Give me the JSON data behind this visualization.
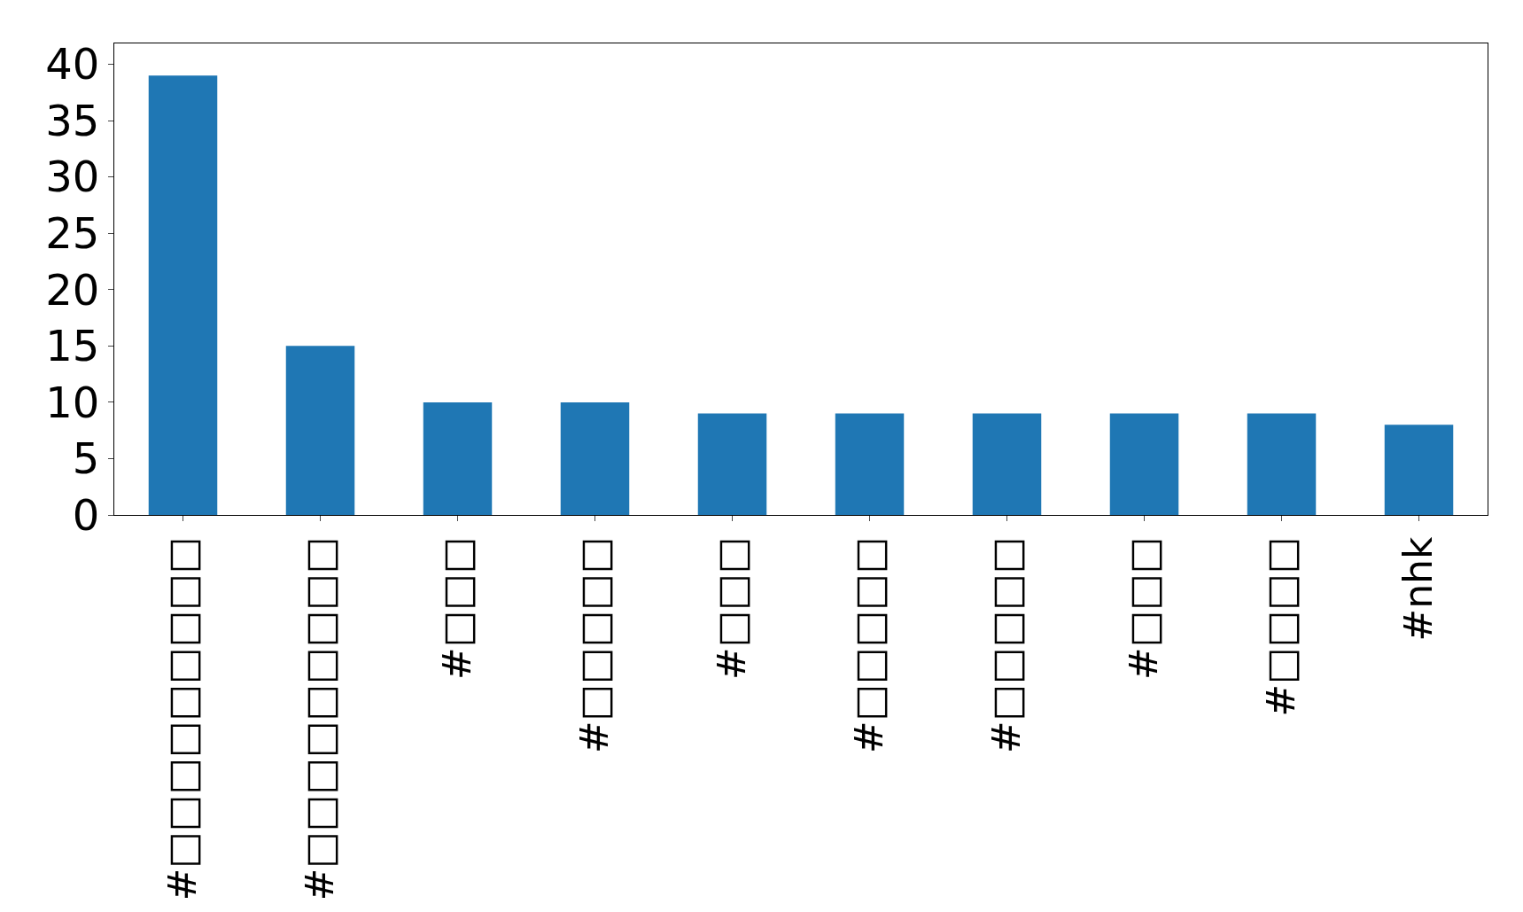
{
  "chart_data": {
    "type": "bar",
    "categories": [
      "#□□□□□□□□□",
      "#□□□□□□□□□",
      "#□□□",
      "#□□□□□",
      "#□□□",
      "#□□□□□",
      "#□□□□□",
      "#□□□",
      "#□□□□",
      "#nhk"
    ],
    "values": [
      39,
      15,
      10,
      10,
      9,
      9,
      9,
      9,
      9,
      8
    ],
    "color": "#1f77b4",
    "ylim": [
      0,
      41.85
    ],
    "yticks": [
      0,
      5,
      10,
      15,
      20,
      25,
      30,
      35,
      40
    ]
  }
}
